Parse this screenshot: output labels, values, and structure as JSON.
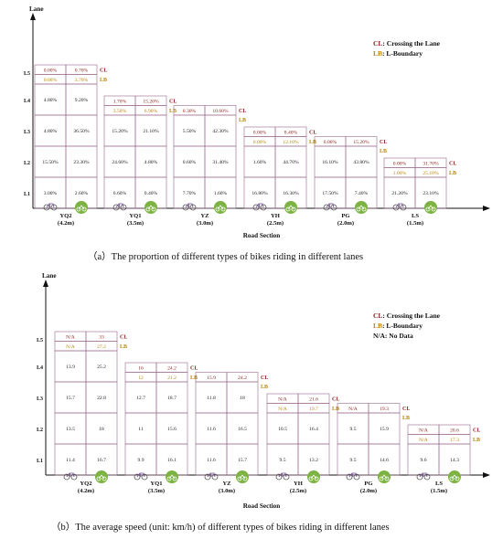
{
  "chart_data": [
    {
      "type": "table",
      "ylabel": "Lane",
      "xlabel": "Road Section",
      "lane_labels": [
        "L1",
        "L2",
        "L3",
        "L4",
        "L5"
      ],
      "caption": "（a）The proportion of different types of bikes riding in different lanes",
      "legend": [
        {
          "key": "CL",
          "text": ": Crossing the Lane",
          "color": "#8B1E1E"
        },
        {
          "key": "LB",
          "text": ": L-Boundary",
          "color": "#B8860B"
        }
      ],
      "cl_tag": "CL",
      "lb_tag": "LB",
      "sections": [
        {
          "name": "YQ2",
          "width": "(4.2m)",
          "lanes": [
            [
              "3.00%",
              "2.60%"
            ],
            [
              "15.50%",
              "23.30%"
            ],
            [
              "4.80%",
              "36.50%"
            ],
            [
              "4.80%",
              "9.20%"
            ]
          ],
          "cl": [
            "0.00%",
            "0.70%"
          ],
          "lb": [
            "0.00%",
            "3.70%"
          ]
        },
        {
          "name": "YQ1",
          "width": "(3.5m)",
          "lanes": [
            [
              "6.60%",
              "0.40%"
            ],
            [
              "24.60%",
              "4.80%"
            ],
            [
              "15.20%",
              "21.10%"
            ]
          ],
          "cl": [
            "1.70%",
            "15.20%"
          ],
          "lb": [
            "3.50%",
            "6.90%"
          ]
        },
        {
          "name": "YZ",
          "width": "(3.0m)",
          "lanes": [
            [
              "7.70%",
              "1.60%"
            ],
            [
              "0.60%",
              "31.40%"
            ],
            [
              "5.50%",
              "42.30%"
            ]
          ],
          "cl": [
            "0.30%",
            "10.60%"
          ],
          "lb": []
        },
        {
          "name": "YH",
          "width": "(2.5m)",
          "lanes": [
            [
              "16.80%",
              "16.30%"
            ],
            [
              "1.60%",
              "44.70%"
            ]
          ],
          "cl": [
            "0.00%",
            "8.40%"
          ],
          "lb": [
            "0.00%",
            "12.10%"
          ]
        },
        {
          "name": "PG",
          "width": "(2.0m)",
          "lanes": [
            [
              "17.50%",
              "7.40%"
            ],
            [
              "16.10%",
              "43.80%"
            ]
          ],
          "cl": [
            "0.00%",
            "15.20%"
          ],
          "lb": []
        },
        {
          "name": "LS",
          "width": "(1.5m)",
          "lanes": [
            [
              "21.20%",
              "23.10%"
            ]
          ],
          "cl": [
            "0.00%",
            "31.70%"
          ],
          "lb": [
            "1.00%",
            "25.10%"
          ]
        }
      ]
    },
    {
      "type": "table",
      "ylabel": "Lane",
      "xlabel": "Road Section",
      "lane_labels": [
        "L1",
        "L2",
        "L3",
        "L4",
        "L5"
      ],
      "caption": "（b）The average speed (unit: km/h) of different types of bikes riding in different lanes",
      "legend": [
        {
          "key": "CL",
          "text": ": Crossing the Lane",
          "color": "#8B1E1E"
        },
        {
          "key": "LB",
          "text": ": L-Boundary",
          "color": "#B8860B"
        },
        {
          "key": "N/A",
          "text": ": No Data",
          "color": "#111111"
        }
      ],
      "cl_tag": "CL",
      "lb_tag": "LB",
      "sections": [
        {
          "name": "YQ2",
          "width": "(4.2m)",
          "lanes": [
            [
              "11.4",
              "16.7"
            ],
            [
              "13.5",
              "18"
            ],
            [
              "15.7",
              "22.8"
            ],
            [
              "13.9",
              "25.2"
            ]
          ],
          "cl": [
            "N/A",
            "33"
          ],
          "lb": [
            "N/A",
            "27.2"
          ]
        },
        {
          "name": "YQ1",
          "width": "(3.5m)",
          "lanes": [
            [
              "9.9",
              "16.1"
            ],
            [
              "11",
              "15.6"
            ],
            [
              "12.7",
              "18.7"
            ]
          ],
          "cl": [
            "16",
            "24.2"
          ],
          "lb": [
            "12",
            "21.2"
          ]
        },
        {
          "name": "YZ",
          "width": "(3.0m)",
          "lanes": [
            [
              "11.6",
              "15.7"
            ],
            [
              "11.6",
              "16.5"
            ],
            [
              "11.8",
              "18"
            ]
          ],
          "cl": [
            "15.9",
            "24.2"
          ],
          "lb": []
        },
        {
          "name": "YH",
          "width": "(2.5m)",
          "lanes": [
            [
              "9.5",
              "13.2"
            ],
            [
              "10.5",
              "16.4"
            ]
          ],
          "cl": [
            "N/A",
            "21.6"
          ],
          "lb": [
            "N/A",
            "19.7"
          ]
        },
        {
          "name": "PG",
          "width": "(2.0m)",
          "lanes": [
            [
              "9.5",
              "14.6"
            ],
            [
              "9.5",
              "15.9"
            ]
          ],
          "cl": [
            "N/A",
            "19.3"
          ],
          "lb": []
        },
        {
          "name": "LS",
          "width": "(1.5m)",
          "lanes": [
            [
              "9.6",
              "14.3"
            ]
          ],
          "cl": [
            "N/A",
            "20.6"
          ],
          "lb": [
            "N/A",
            "17.3"
          ]
        }
      ]
    }
  ]
}
